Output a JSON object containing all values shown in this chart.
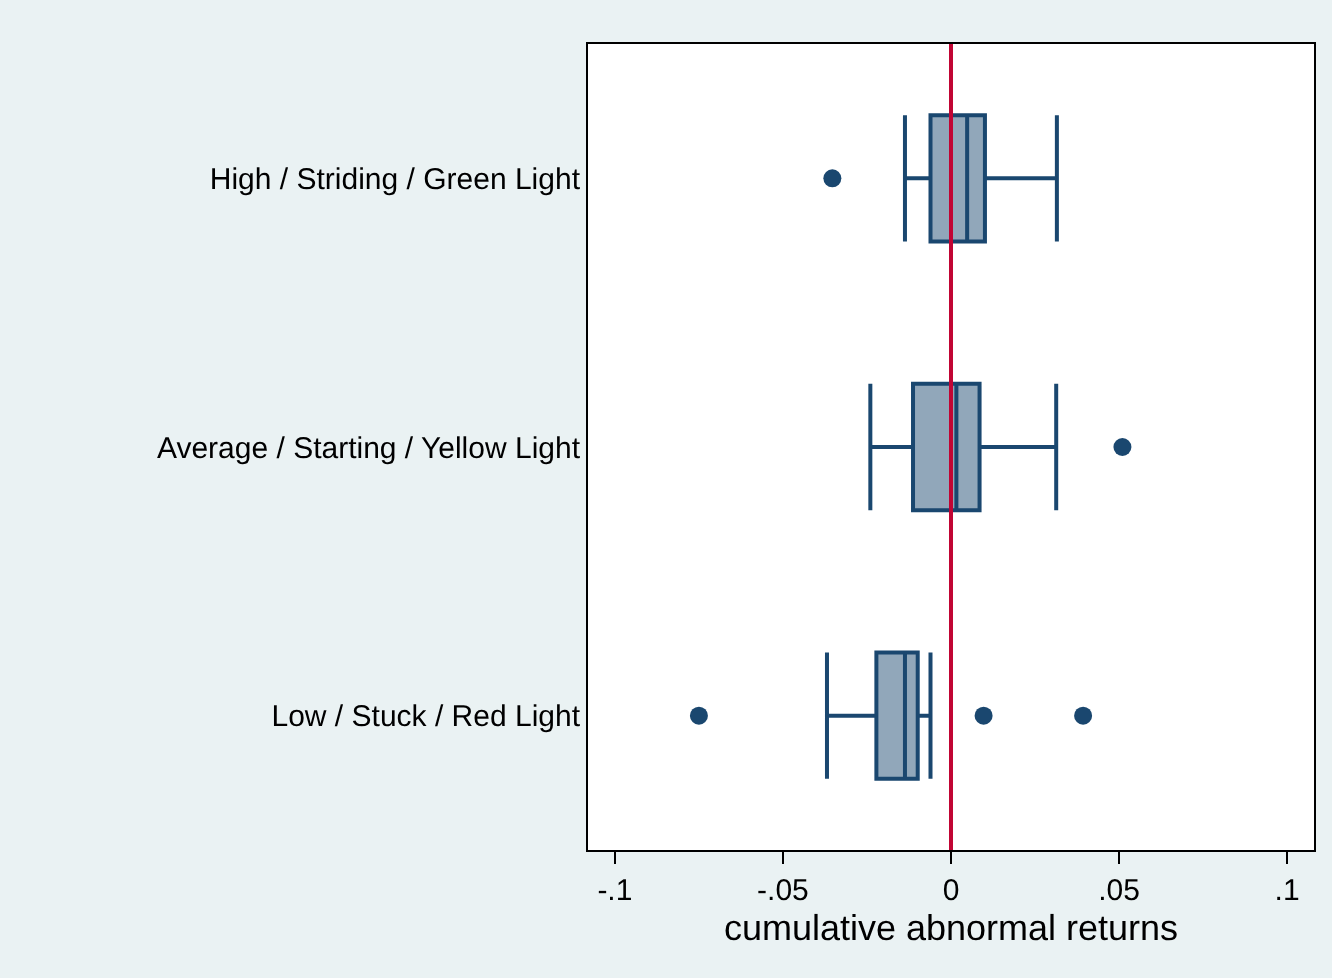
{
  "chart_data": {
    "type": "box",
    "orientation": "horizontal",
    "xlabel": "cumulative abnormal returns",
    "categories": [
      "High / Striding / Green Light",
      "Average / Starting / Yellow Light",
      "Low / Stuck / Red Light"
    ],
    "series": [
      {
        "color": "#1a476f",
        "boxes": [
          {
            "low": -0.0137,
            "q1": -0.0061,
            "median": 0.0048,
            "q3": 0.0101,
            "high": 0.0315,
            "outliers": [
              -0.0353
            ]
          },
          {
            "low": -0.024,
            "q1": -0.0113,
            "median": 0.0016,
            "q3": 0.0085,
            "high": 0.0313,
            "outliers": [
              0.051
            ]
          },
          {
            "low": -0.0369,
            "q1": -0.0222,
            "median": -0.0137,
            "q3": -0.0099,
            "high": -0.0061,
            "outliers": [
              -0.075,
              0.0097,
              0.0393
            ]
          }
        ]
      }
    ],
    "xlim": [
      -0.108,
      0.108
    ],
    "xticks": [
      {
        "value": -0.1,
        "label": "-.1"
      },
      {
        "value": -0.05,
        "label": "-.05"
      },
      0,
      {
        "value": 0.05,
        "label": ".05"
      },
      {
        "value": 0.1,
        "label": ".1"
      }
    ],
    "ref_lines": [
      {
        "axis": "x",
        "value": 0,
        "color": "#c10534"
      }
    ],
    "grid": false
  }
}
